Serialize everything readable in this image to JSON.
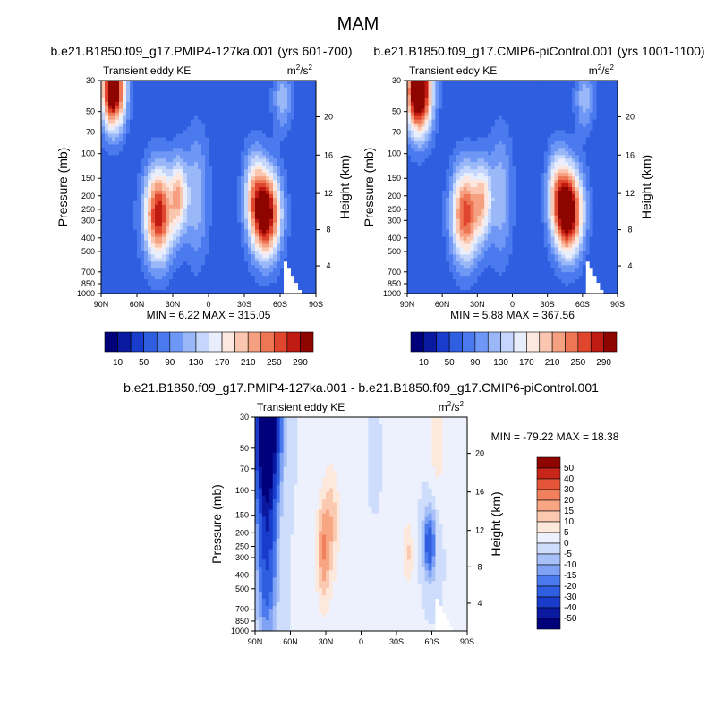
{
  "title": "MAM",
  "colors": {
    "levels10": [
      "#00007a",
      "#0a1aa0",
      "#1a3ccc",
      "#2f5fe0",
      "#4a7aee",
      "#6f97f5",
      "#9ab8f8",
      "#c4d6fb",
      "#e8eefc",
      "#fde7df",
      "#fac6b0",
      "#f5a080",
      "#ef7655",
      "#e0462d",
      "#c01b12",
      "#8e0500"
    ],
    "diffpal": [
      "#00007a",
      "#0a1aa0",
      "#1a3ccc",
      "#2f5fe0",
      "#4a7aee",
      "#7fa2f4",
      "#a7c1f8",
      "#cdddfb",
      "#edf1fd",
      "#fde8dc",
      "#fbc9b0",
      "#f7a582",
      "#f1815c",
      "#e4553a",
      "#c8261a",
      "#8e0500"
    ]
  },
  "chart_data": [
    {
      "type": "heatmap",
      "name": "panel-a",
      "title": "b.e21.B1850.f09_g17.PMIP4-127ka.001 (yrs 601-700)",
      "left_label": "Transient eddy KE",
      "units_base": "m",
      "units_exp": "2",
      "units_tail": "/s",
      "units_exp2": "2",
      "xlabel": "",
      "ylabel": "Pressure (mb)",
      "y2label": "Height (km)",
      "xticks": [
        "90N",
        "60N",
        "30N",
        "0",
        "30S",
        "60S",
        "90S"
      ],
      "yticks": [
        "30",
        "50",
        "70",
        "100",
        "150",
        "200",
        "250",
        "300",
        "400",
        "500",
        "700",
        "850",
        "1000"
      ],
      "y2ticks": [
        "20",
        "16",
        "12",
        "8",
        "4"
      ],
      "min_label": "MIN =   6.22  MAX = 315.05",
      "min": 6.22,
      "max": 315.05,
      "colorbar_labels": [
        "10",
        "50",
        "90",
        "130",
        "170",
        "210",
        "250",
        "290"
      ],
      "features": [
        {
          "lat": 80,
          "p": 35,
          "amp": 290,
          "slat": 10,
          "sz": 0.18
        },
        {
          "lat": 42,
          "p": 270,
          "amp": 230,
          "slat": 12,
          "sz": 0.22
        },
        {
          "lat": 25,
          "p": 200,
          "amp": 130,
          "slat": 7,
          "sz": 0.18
        },
        {
          "lat": -48,
          "p": 270,
          "amp": 270,
          "slat": 12,
          "sz": 0.2
        },
        {
          "lat": -38,
          "p": 180,
          "amp": 90,
          "slat": 9,
          "sz": 0.2
        },
        {
          "lat": -62,
          "p": 40,
          "amp": 70,
          "slat": 8,
          "sz": 0.15
        },
        {
          "lat": 10,
          "p": 200,
          "amp": 70,
          "slat": 10,
          "sz": 0.3
        }
      ],
      "background": 55
    },
    {
      "type": "heatmap",
      "name": "panel-b",
      "title": "b.e21.B1850.f09_g17.CMIP6-piControl.001 (yrs 1001-1100)",
      "left_label": "Transient eddy KE",
      "units_base": "m",
      "units_exp": "2",
      "units_tail": "/s",
      "units_exp2": "2",
      "xlabel": "",
      "ylabel": "Pressure (mb)",
      "y2label": "Height (km)",
      "xticks": [
        "90N",
        "60N",
        "30N",
        "0",
        "30S",
        "60S",
        "90S"
      ],
      "yticks": [
        "30",
        "50",
        "70",
        "100",
        "150",
        "200",
        "250",
        "300",
        "400",
        "500",
        "700",
        "850",
        "1000"
      ],
      "y2ticks": [
        "20",
        "16",
        "12",
        "8",
        "4"
      ],
      "min_label": "MIN =   5.88  MAX = 367.56",
      "min": 5.88,
      "max": 367.56,
      "colorbar_labels": [
        "10",
        "50",
        "90",
        "130",
        "170",
        "210",
        "250",
        "290"
      ],
      "features": [
        {
          "lat": 80,
          "p": 35,
          "amp": 320,
          "slat": 11,
          "sz": 0.2
        },
        {
          "lat": 40,
          "p": 270,
          "amp": 210,
          "slat": 12,
          "sz": 0.22
        },
        {
          "lat": 25,
          "p": 210,
          "amp": 110,
          "slat": 7,
          "sz": 0.18
        },
        {
          "lat": -48,
          "p": 260,
          "amp": 285,
          "slat": 12,
          "sz": 0.2
        },
        {
          "lat": -38,
          "p": 180,
          "amp": 90,
          "slat": 9,
          "sz": 0.2
        },
        {
          "lat": -62,
          "p": 40,
          "amp": 70,
          "slat": 8,
          "sz": 0.15
        },
        {
          "lat": 10,
          "p": 200,
          "amp": 70,
          "slat": 10,
          "sz": 0.3
        }
      ],
      "background": 55
    },
    {
      "type": "heatmap",
      "name": "panel-diff",
      "title": "b.e21.B1850.f09_g17.PMIP4-127ka.001 - b.e21.B1850.f09_g17.CMIP6-piControl.001",
      "left_label": "Transient eddy KE",
      "units_base": "m",
      "units_exp": "2",
      "units_tail": "/s",
      "units_exp2": "2",
      "xlabel": "",
      "ylabel": "Pressure (mb)",
      "y2label": "Height (km)",
      "xticks": [
        "90N",
        "60N",
        "30N",
        "0",
        "30S",
        "60S",
        "90S"
      ],
      "yticks": [
        "30",
        "50",
        "70",
        "100",
        "150",
        "200",
        "250",
        "300",
        "400",
        "500",
        "700",
        "850",
        "1000"
      ],
      "y2ticks": [
        "20",
        "16",
        "12",
        "8",
        "4"
      ],
      "min_label": "MIN = -79.22  MAX =  18.38",
      "min": -79.22,
      "max": 18.38,
      "colorbar_labels": [
        "50",
        "40",
        "30",
        "20",
        "15",
        "10",
        "5",
        "0",
        "-5",
        "-10",
        "-15",
        "-20",
        "-30",
        "-40",
        "-50"
      ],
      "features": [
        {
          "lat": 80,
          "p": 35,
          "amp": -75,
          "slat": 10,
          "sz": 0.3
        },
        {
          "lat": 80,
          "p": 200,
          "amp": -35,
          "slat": 8,
          "sz": 0.45
        },
        {
          "lat": 32,
          "p": 270,
          "amp": 18,
          "slat": 6,
          "sz": 0.25
        },
        {
          "lat": 25,
          "p": 160,
          "amp": 10,
          "slat": 6,
          "sz": 0.25
        },
        {
          "lat": -58,
          "p": 240,
          "amp": -28,
          "slat": 5,
          "sz": 0.15
        },
        {
          "lat": -40,
          "p": 280,
          "amp": 10,
          "slat": 5,
          "sz": 0.15
        },
        {
          "lat": -65,
          "p": 40,
          "amp": 10,
          "slat": 6,
          "sz": 0.25
        },
        {
          "lat": -10,
          "p": 80,
          "amp": -3,
          "slat": 10,
          "sz": 0.4
        },
        {
          "lat": 0,
          "p": 400,
          "amp": 3,
          "slat": 30,
          "sz": 1.0
        }
      ],
      "background": 0
    }
  ]
}
